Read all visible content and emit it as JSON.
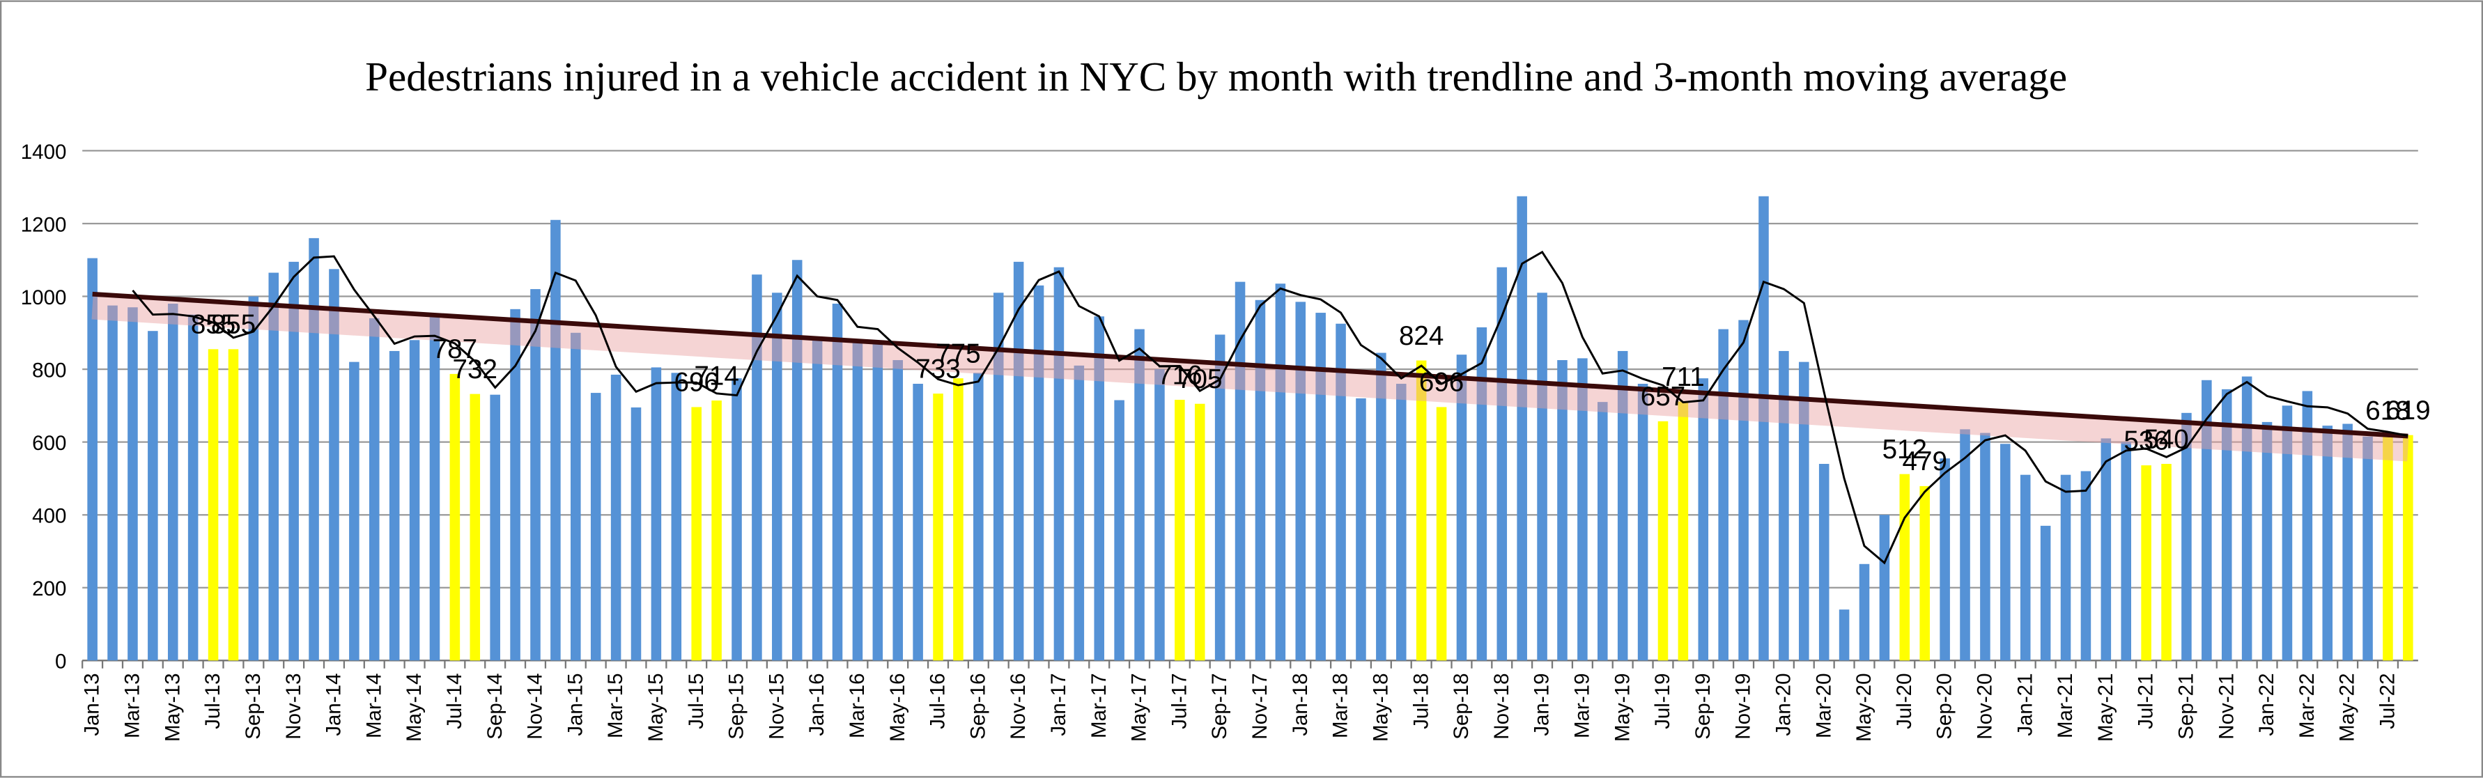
{
  "chart_data": {
    "type": "bar",
    "title": "Pedestrians injured in a vehicle accident in NYC by month with trendline and 3-month moving average",
    "categories": [
      "Jan-13",
      null,
      "Mar-13",
      null,
      "May-13",
      null,
      "Jul-13",
      null,
      "Sep-13",
      null,
      "Nov-13",
      null,
      "Jan-14",
      null,
      "Mar-14",
      null,
      "May-14",
      null,
      "Jul-14",
      null,
      "Sep-14",
      null,
      "Nov-14",
      null,
      "Jan-15",
      null,
      "Mar-15",
      null,
      "May-15",
      null,
      "Jul-15",
      null,
      "Sep-15",
      null,
      "Nov-15",
      null,
      "Jan-16",
      null,
      "Mar-16",
      null,
      "May-16",
      null,
      "Jul-16",
      null,
      "Sep-16",
      null,
      "Nov-16",
      null,
      "Jan-17",
      null,
      "Mar-17",
      null,
      "May-17",
      null,
      "Jul-17",
      null,
      "Sep-17",
      null,
      "Nov-17",
      null,
      "Jan-18",
      null,
      "Mar-18",
      null,
      "May-18",
      null,
      "Jul-18",
      null,
      "Sep-18",
      null,
      "Nov-18",
      null,
      "Jan-19",
      null,
      "Mar-19",
      null,
      "May-19",
      null,
      "Jul-19",
      null,
      "Sep-19",
      null,
      "Nov-19",
      null,
      "Jan-20",
      null,
      "Mar-20",
      null,
      "May-20",
      null,
      "Jul-20",
      null,
      "Sep-20",
      null,
      "Nov-20",
      null,
      "Jan-21",
      null,
      "Mar-21",
      null,
      "May-21",
      null,
      "Jul-21",
      null,
      "Sep-21",
      null,
      "Nov-21",
      null,
      "Jan-22",
      null,
      "Mar-22",
      null,
      "May-22",
      null,
      "Jul-22",
      null
    ],
    "series": [
      {
        "color": "#5592d6",
        "values": [
          1105,
          975,
          970,
          905,
          980,
          950,
          null,
          null,
          1000,
          1065,
          1095,
          1160,
          1075,
          820,
          940,
          850,
          880,
          945,
          null,
          null,
          730,
          965,
          1020,
          1210,
          900,
          735,
          785,
          695,
          805,
          790,
          null,
          null,
          775,
          1060,
          1010,
          1100,
          890,
          980,
          880,
          870,
          825,
          760,
          null,
          null,
          790,
          1010,
          1095,
          1030,
          1080,
          810,
          945,
          715,
          910,
          800,
          null,
          null,
          895,
          1040,
          990,
          1035,
          985,
          955,
          925,
          720,
          845,
          760,
          null,
          null,
          840,
          915,
          1080,
          1275,
          1010,
          825,
          830,
          710,
          850,
          760,
          null,
          null,
          775,
          910,
          935,
          1275,
          850,
          820,
          540,
          140,
          265,
          400,
          null,
          null,
          555,
          635,
          625,
          595,
          510,
          370,
          510,
          520,
          610,
          600,
          null,
          null,
          680,
          770,
          745,
          780,
          655,
          700,
          740,
          645,
          650,
          615,
          null,
          null
        ]
      },
      {
        "color": "#ffff00",
        "data_labels": true,
        "values": [
          null,
          null,
          null,
          null,
          null,
          null,
          855,
          855,
          null,
          null,
          null,
          null,
          null,
          null,
          null,
          null,
          null,
          null,
          787,
          732,
          null,
          null,
          null,
          null,
          null,
          null,
          null,
          null,
          null,
          null,
          696,
          714,
          null,
          null,
          null,
          null,
          null,
          null,
          null,
          null,
          null,
          null,
          733,
          775,
          null,
          null,
          null,
          null,
          null,
          null,
          null,
          null,
          null,
          null,
          716,
          705,
          null,
          null,
          null,
          null,
          null,
          null,
          null,
          null,
          null,
          null,
          824,
          696,
          null,
          null,
          null,
          null,
          null,
          null,
          null,
          null,
          null,
          null,
          657,
          711,
          null,
          null,
          null,
          null,
          null,
          null,
          null,
          null,
          null,
          null,
          512,
          479,
          null,
          null,
          null,
          null,
          null,
          null,
          null,
          null,
          null,
          null,
          536,
          540,
          null,
          null,
          null,
          null,
          null,
          null,
          null,
          null,
          null,
          null,
          618,
          619
        ]
      }
    ],
    "trendline": true,
    "moving_average": 3,
    "ylim": [
      0,
      1400
    ],
    "yticks": [
      0,
      200,
      400,
      600,
      800,
      1000,
      1200,
      1400
    ],
    "grid": true
  }
}
